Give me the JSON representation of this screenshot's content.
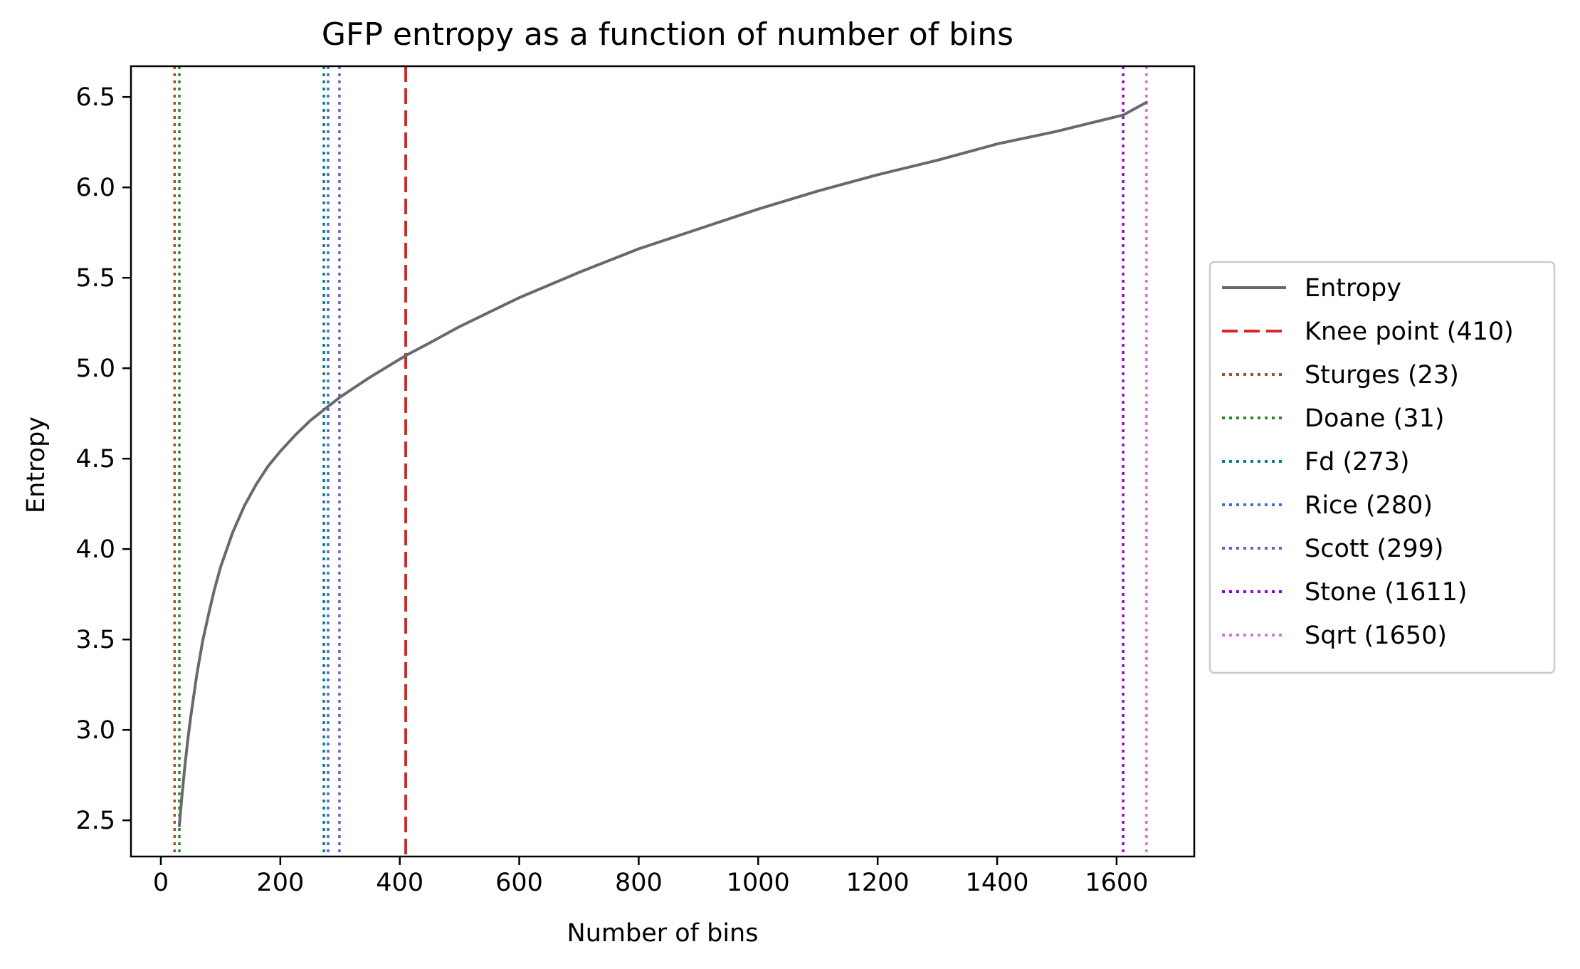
{
  "chart_data": {
    "type": "line",
    "title": "GFP entropy as a function of number of bins",
    "xlabel": "Number of bins",
    "ylabel": "Entropy",
    "xlim": [
      -50,
      1730
    ],
    "ylim": [
      2.3,
      6.67
    ],
    "xticks": [
      0,
      200,
      400,
      600,
      800,
      1000,
      1200,
      1400,
      1600
    ],
    "yticks": [
      2.5,
      3.0,
      3.5,
      4.0,
      4.5,
      5.0,
      5.5,
      6.0,
      6.5
    ],
    "grid": false,
    "legend_position": "outside-right",
    "series": [
      {
        "name": "Entropy",
        "style": "solid",
        "color": "#696969",
        "x": [
          31,
          35,
          40,
          45,
          50,
          60,
          70,
          80,
          90,
          100,
          120,
          140,
          160,
          180,
          200,
          225,
          250,
          273,
          300,
          350,
          400,
          410,
          450,
          500,
          550,
          600,
          700,
          800,
          900,
          1000,
          1100,
          1200,
          1300,
          1400,
          1500,
          1611,
          1650
        ],
        "y": [
          2.47,
          2.62,
          2.79,
          2.94,
          3.07,
          3.3,
          3.49,
          3.64,
          3.78,
          3.9,
          4.09,
          4.24,
          4.36,
          4.46,
          4.54,
          4.63,
          4.71,
          4.77,
          4.84,
          4.95,
          5.05,
          5.07,
          5.14,
          5.23,
          5.31,
          5.39,
          5.53,
          5.66,
          5.77,
          5.88,
          5.98,
          6.07,
          6.15,
          6.24,
          6.31,
          6.4,
          6.47
        ]
      }
    ],
    "vlines": [
      {
        "label": "Knee point (410)",
        "x": 410,
        "style": "dashed",
        "color": "#d62728"
      },
      {
        "label": "Sturges (23)",
        "x": 23,
        "style": "dotted",
        "color": "#a0522d"
      },
      {
        "label": "Doane (31)",
        "x": 31,
        "style": "dotted",
        "color": "#228b22"
      },
      {
        "label": "Fd (273)",
        "x": 273,
        "style": "dotted",
        "color": "#008080"
      },
      {
        "label": "Rice (280)",
        "x": 280,
        "style": "dotted",
        "color": "#4169e1"
      },
      {
        "label": "Scott (299)",
        "x": 299,
        "style": "dotted",
        "color": "#6a5acd"
      },
      {
        "label": "Stone (1611)",
        "x": 1611,
        "style": "dotted",
        "color": "#9400d3"
      },
      {
        "label": "Sqrt (1650)",
        "x": 1650,
        "style": "dotted",
        "color": "#da70d6"
      }
    ]
  }
}
